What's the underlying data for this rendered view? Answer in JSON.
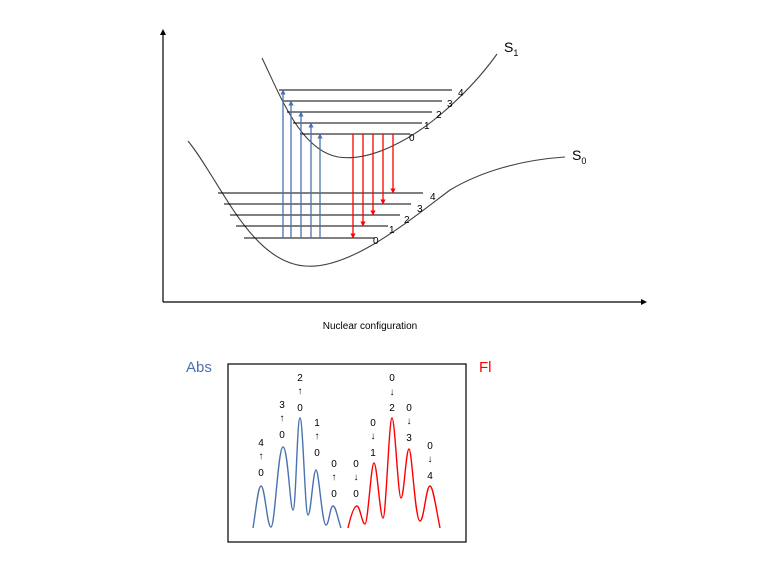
{
  "energy_diagram": {
    "x_axis_label": "Nuclear configuration",
    "excited_state": {
      "label_main": "S",
      "label_sub": "1",
      "levels": [
        "0",
        "1",
        "2",
        "3",
        "4"
      ]
    },
    "ground_state": {
      "label_main": "S",
      "label_sub": "0",
      "levels": [
        "0",
        "1",
        "2",
        "3",
        "4"
      ]
    },
    "colors": {
      "absorption": "#4a72b0",
      "fluorescence": "#ff0000",
      "curve": "#404040"
    }
  },
  "spectrum": {
    "abs_label": "Abs",
    "fl_label": "Fl",
    "abs_peaks": [
      {
        "top": "4",
        "arrow": "↑",
        "bottom": "0"
      },
      {
        "top": "3",
        "arrow": "↑",
        "bottom": "0"
      },
      {
        "top": "2",
        "arrow": "↑",
        "bottom": "0"
      },
      {
        "top": "1",
        "arrow": "↑",
        "bottom": "0"
      },
      {
        "top": "0",
        "arrow": "↑",
        "bottom": "0"
      }
    ],
    "fl_peaks": [
      {
        "top": "0",
        "arrow": "↓",
        "bottom": "0"
      },
      {
        "top": "0",
        "arrow": "↓",
        "bottom": "1"
      },
      {
        "top": "0",
        "arrow": "↓",
        "bottom": "2"
      },
      {
        "top": "0",
        "arrow": "↓",
        "bottom": "3"
      },
      {
        "top": "0",
        "arrow": "↓",
        "bottom": "4"
      }
    ]
  }
}
